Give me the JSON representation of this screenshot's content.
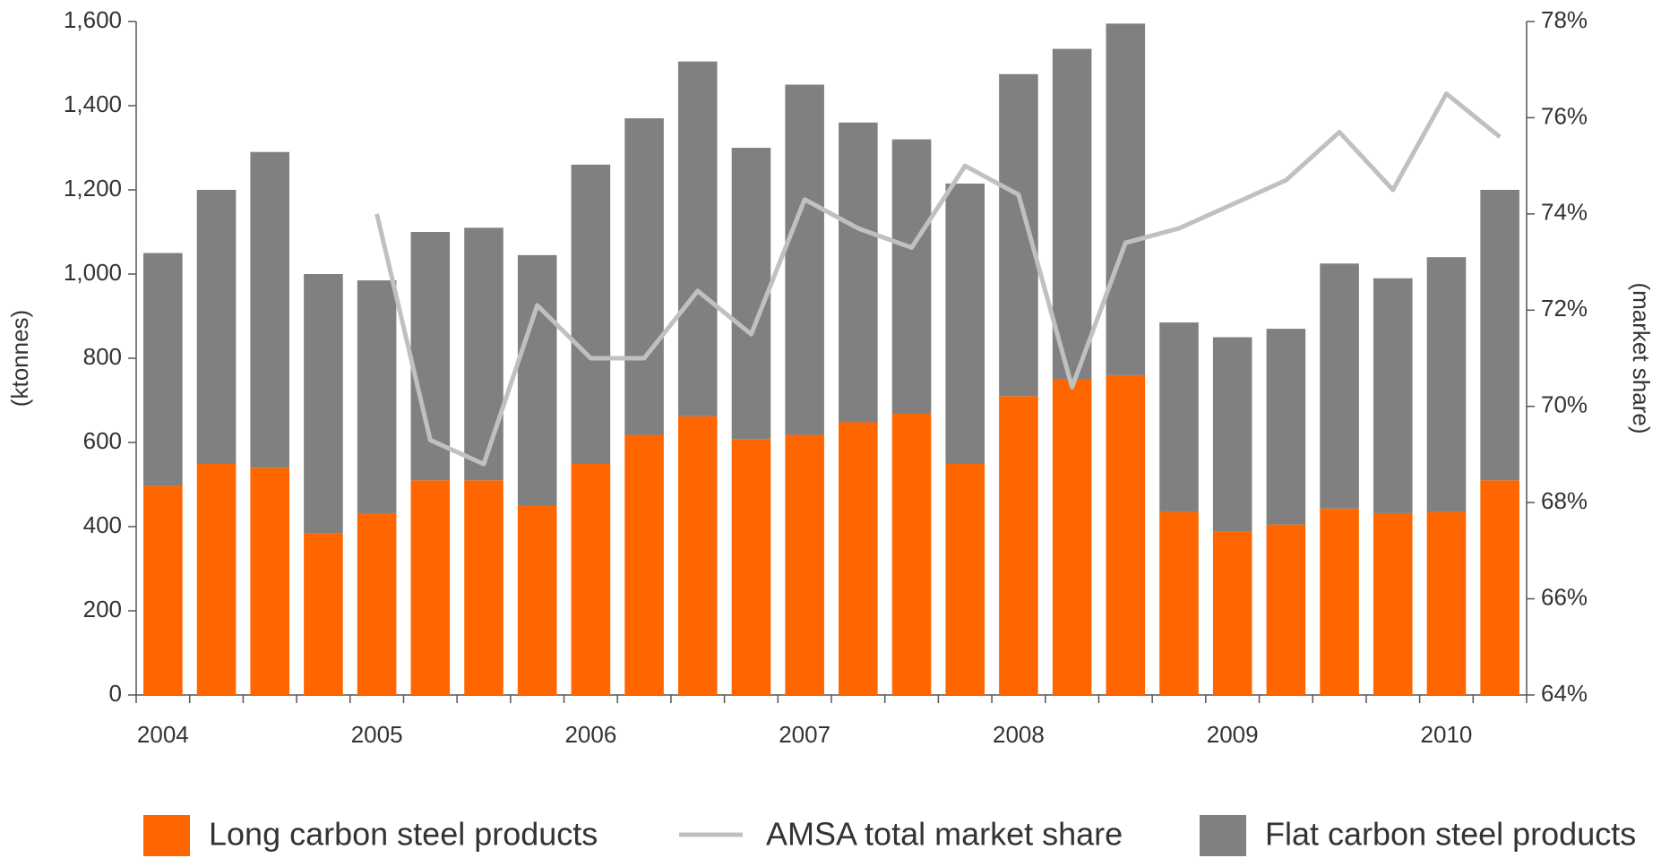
{
  "chart_data": {
    "type": "bar",
    "stacked": true,
    "categories": [
      "2004",
      null,
      null,
      null,
      "2005",
      null,
      null,
      null,
      "2006",
      null,
      null,
      null,
      "2007",
      null,
      null,
      null,
      "2008",
      null,
      null,
      null,
      "2009",
      null,
      null,
      null,
      "2010",
      null
    ],
    "series": [
      {
        "name": "Long carbon steel products",
        "color": "#ff6600",
        "values": [
          497,
          550,
          540,
          385,
          430,
          510,
          510,
          450,
          550,
          618,
          662,
          608,
          618,
          648,
          668,
          550,
          710,
          750,
          760,
          435,
          388,
          405,
          443,
          432,
          435,
          510
        ]
      },
      {
        "name": "AMSA total market share",
        "color": "#c0c0c0",
        "type": "line",
        "axis": "y2",
        "values": [
          null,
          null,
          null,
          null,
          74.0,
          69.3,
          68.8,
          72.1,
          71.0,
          71.0,
          72.4,
          71.5,
          74.3,
          73.7,
          73.3,
          75.0,
          74.4,
          70.4,
          73.4,
          73.7,
          74.2,
          74.7,
          75.7,
          74.5,
          76.5,
          75.6
        ]
      },
      {
        "name": "Flat carbon steel products",
        "color": "#808080",
        "values": [
          553,
          650,
          750,
          615,
          555,
          590,
          600,
          595,
          710,
          752,
          843,
          692,
          832,
          712,
          652,
          665,
          765,
          785,
          835,
          450,
          462,
          465,
          582,
          558,
          605,
          690
        ]
      }
    ],
    "ylabel": "(ktonnes)",
    "y2label": "(market share)",
    "ylim": [
      0,
      1600
    ],
    "yticks": [
      0,
      200,
      400,
      600,
      800,
      {
        "value": 1000,
        "label": "1,000"
      },
      {
        "value": 1200,
        "label": "1,200"
      },
      {
        "value": 1400,
        "label": "1,400"
      },
      {
        "value": 1600,
        "label": "1,600"
      }
    ],
    "y2lim": [
      64,
      78
    ],
    "y2ticks": [
      {
        "value": 64,
        "label": "64%"
      },
      {
        "value": 66,
        "label": "66%"
      },
      {
        "value": 68,
        "label": "68%"
      },
      {
        "value": 70,
        "label": "70%"
      },
      {
        "value": 72,
        "label": "72%"
      },
      {
        "value": 74,
        "label": "74%"
      },
      {
        "value": 76,
        "label": "76%"
      },
      {
        "value": 78,
        "label": "78%"
      }
    ],
    "grid": false
  }
}
